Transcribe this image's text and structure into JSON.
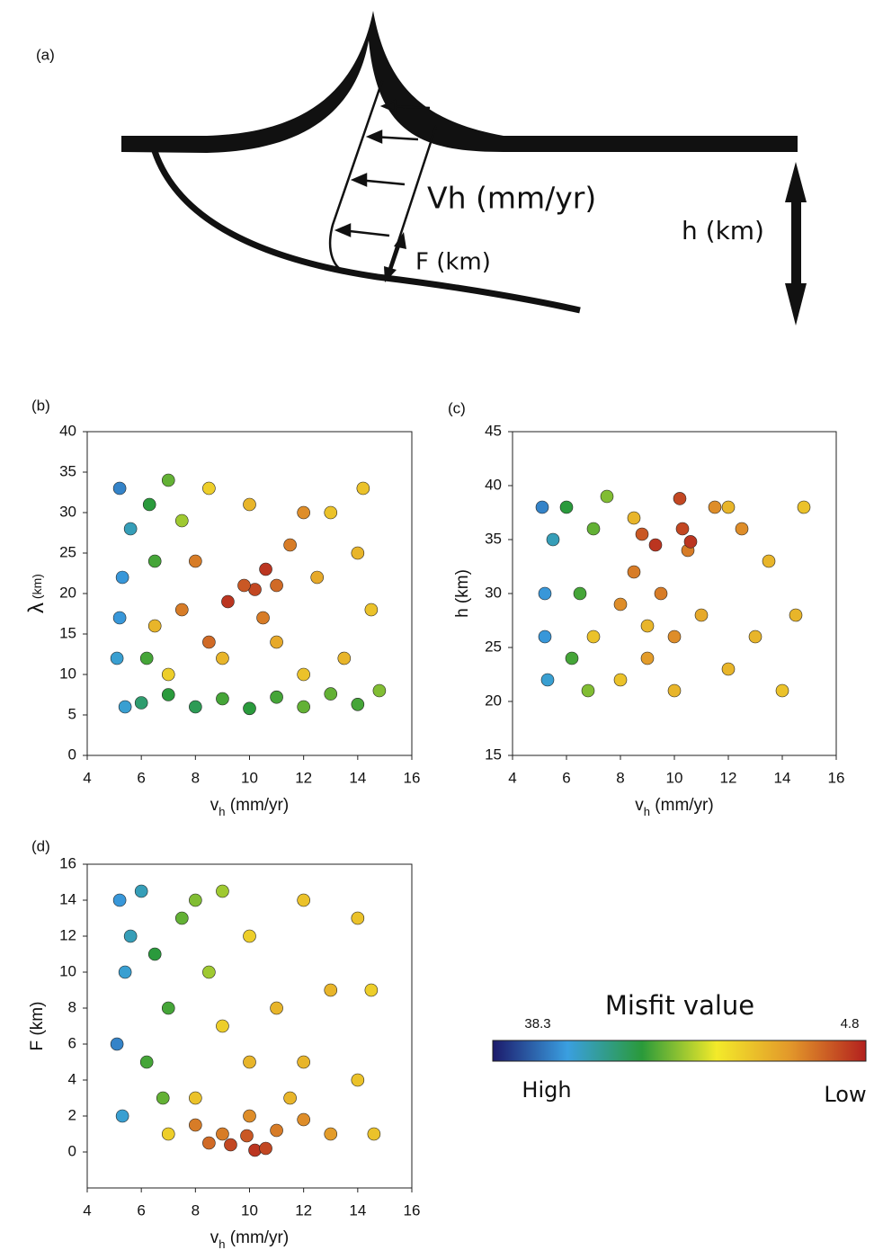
{
  "panel_a": {
    "label": "(a)",
    "velocity_label": "Vh (mm/yr)",
    "thickness_label": "F (km)",
    "depth_label": "h (km)"
  },
  "chart_data": [
    {
      "type": "scatter",
      "label": "(b)",
      "xlabel": [
        "v",
        "h",
        " (mm/yr)"
      ],
      "ylabel": [
        "λ",
        " (km)"
      ],
      "xlim": [
        4,
        16
      ],
      "ylim": [
        0,
        40
      ],
      "xticks": [
        4,
        6,
        8,
        10,
        12,
        14,
        16
      ],
      "yticks": [
        0,
        5,
        10,
        15,
        20,
        25,
        30,
        35,
        40
      ],
      "x": [
        5.2,
        5.3,
        5.1,
        5.4,
        5.6,
        5.2,
        6,
        7,
        8,
        9,
        10,
        11,
        12,
        13,
        14,
        14.8,
        6.3,
        6.5,
        7,
        6.2,
        7.5,
        13,
        14,
        14.5,
        13.5,
        12,
        11,
        12.5,
        10,
        8.5,
        14.2,
        9,
        7,
        6.5,
        8,
        7.5,
        11.5,
        10.5,
        12,
        8.5,
        11,
        9.2,
        10.2,
        10.6,
        9.8
      ],
      "y": [
        33,
        22,
        12,
        6,
        28,
        17,
        6.5,
        7.5,
        6,
        7,
        5.8,
        7.2,
        6,
        7.6,
        6.3,
        8,
        31,
        24,
        34,
        12,
        29,
        30,
        25,
        18,
        12,
        10,
        14,
        22,
        31,
        33,
        33,
        12,
        10,
        16,
        24,
        18,
        26,
        17,
        30,
        14,
        21,
        19,
        20.5,
        23,
        21
      ],
      "misfit": [
        33,
        32,
        31,
        31,
        30,
        32,
        27,
        25,
        26,
        24,
        25,
        24,
        23,
        23,
        24,
        22,
        25,
        24,
        23,
        24,
        21,
        15,
        14,
        15,
        14,
        15,
        13,
        13,
        14,
        16,
        15,
        14,
        16,
        14,
        10,
        10,
        10,
        10,
        11,
        9,
        9,
        6,
        7,
        6,
        8
      ]
    },
    {
      "type": "scatter",
      "label": "(c)",
      "xlabel": [
        "v",
        "h",
        " (mm/yr)"
      ],
      "ylabel": [
        "h (km)"
      ],
      "xlim": [
        4,
        16
      ],
      "ylim": [
        15,
        45
      ],
      "xticks": [
        4,
        6,
        8,
        10,
        12,
        14,
        16
      ],
      "yticks": [
        15,
        20,
        25,
        30,
        35,
        40,
        45
      ],
      "x": [
        5.1,
        5.2,
        5.3,
        5.5,
        5.2,
        6,
        6.5,
        7,
        6.2,
        7.5,
        6.8,
        8,
        10,
        12,
        14,
        14.5,
        13.5,
        14.8,
        12,
        11,
        9,
        13,
        7,
        8.5,
        8.5,
        9.5,
        10.5,
        11.5,
        12.5,
        10,
        9,
        8,
        9.3,
        10.3,
        10.6,
        10.2,
        8.8
      ],
      "y": [
        38,
        30,
        22,
        35,
        26,
        38,
        30,
        36,
        24,
        39,
        21,
        22,
        21,
        23,
        21,
        28,
        33,
        38,
        38,
        28,
        27,
        26,
        26,
        37,
        32,
        30,
        34,
        38,
        36,
        26,
        24,
        29,
        34.5,
        36,
        34.8,
        38.8,
        35.5
      ],
      "misfit": [
        33,
        32,
        31,
        30,
        32,
        25,
        24,
        23,
        24,
        22,
        22,
        15,
        14,
        14,
        15,
        14,
        14,
        15,
        14,
        13,
        14,
        14,
        15,
        14,
        10,
        10,
        10,
        11,
        11,
        11,
        12,
        11,
        6,
        7,
        6,
        7,
        8
      ]
    },
    {
      "type": "scatter",
      "label": "(d)",
      "xlabel": [
        "v",
        "h",
        " (mm/yr)"
      ],
      "ylabel": [
        "F (km)"
      ],
      "xlim": [
        4,
        16
      ],
      "ylim": [
        -2,
        16
      ],
      "xticks": [
        4,
        6,
        8,
        10,
        12,
        14,
        16
      ],
      "yticks": [
        0,
        2,
        4,
        6,
        8,
        10,
        12,
        14,
        16
      ],
      "x": [
        5.2,
        5.4,
        5.1,
        5.6,
        5.3,
        6,
        6.5,
        7,
        7.5,
        6.2,
        8,
        6.8,
        9,
        8.5,
        10,
        12,
        14,
        14.5,
        13,
        11,
        12,
        14,
        10,
        9,
        11.5,
        14.6,
        8,
        7,
        8,
        9,
        11,
        12,
        10,
        13,
        8.5,
        9.3,
        10.2,
        10.6,
        9.9
      ],
      "y": [
        14,
        10,
        6,
        12,
        2,
        14.5,
        11,
        8,
        13,
        5,
        14,
        3,
        14.5,
        10,
        12,
        14,
        13,
        9,
        9,
        8,
        5,
        4,
        5,
        7,
        3,
        1,
        3,
        1,
        1.5,
        1,
        1.2,
        1.8,
        2,
        1,
        0.5,
        0.4,
        0.1,
        0.2,
        0.9
      ],
      "misfit": [
        32,
        31,
        33,
        30,
        31,
        30,
        25,
        24,
        23,
        24,
        22,
        23,
        21,
        21,
        16,
        15,
        15,
        16,
        14,
        14,
        14,
        15,
        14,
        16,
        14,
        15,
        15,
        16,
        10,
        10,
        10,
        11,
        11,
        12,
        9,
        7,
        6,
        7,
        8
      ]
    }
  ],
  "colorbar": {
    "title": "Misfit value",
    "high": 38.3,
    "low": 4.8,
    "high_label": "High",
    "low_label": "Low",
    "colormap": [
      "#1c1a6b",
      "#3a9fe0",
      "#2a9a3a",
      "#f3ea2a",
      "#e2962a",
      "#b3201e"
    ]
  }
}
